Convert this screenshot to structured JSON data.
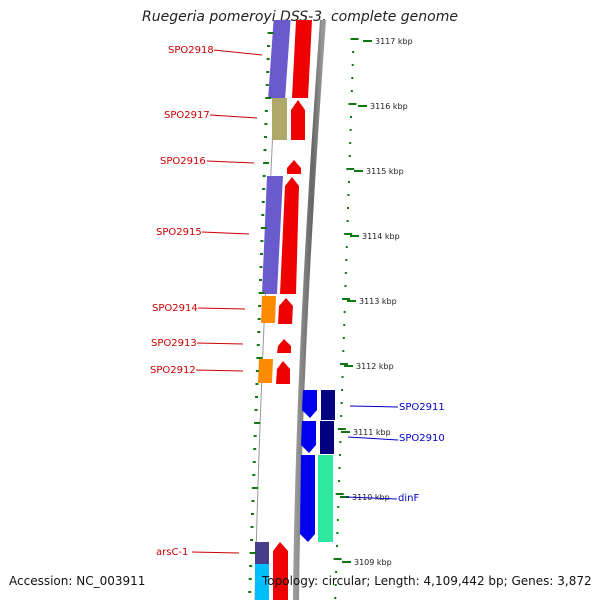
{
  "title": "Ruegeria pomeroyi DSS-3, complete genome",
  "footer": {
    "accession": "Accession: NC_003911",
    "topology": "Topology: circular; Length: 4,109,442 bp; Genes: 3,872"
  },
  "scale_labels": [
    "3117 kbp",
    "3116 kbp",
    "3115 kbp",
    "3114 kbp",
    "3113 kbp",
    "3112 kbp",
    "3111 kbp",
    "3110 kbp",
    "3109 kbp"
  ],
  "forward_genes": [
    "SPO2918",
    "SPO2917",
    "SPO2916",
    "SPO2915",
    "SPO2914",
    "SPO2913",
    "SPO2912",
    "arsC-1"
  ],
  "reverse_genes": [
    "SPO2911",
    "SPO2910",
    "dinF"
  ],
  "colors": {
    "forward_label": "#cc0000",
    "reverse_label": "#0000cc",
    "tick": "#117711",
    "cds_red": "#ee0000",
    "purple": "#6a5acd",
    "olive": "#b0a868",
    "orange": "#ff8c00",
    "blue": "#0000ee",
    "navy": "#000080",
    "green": "#2ee8a0",
    "cyan": "#00bfff",
    "slate": "#483d8b"
  }
}
